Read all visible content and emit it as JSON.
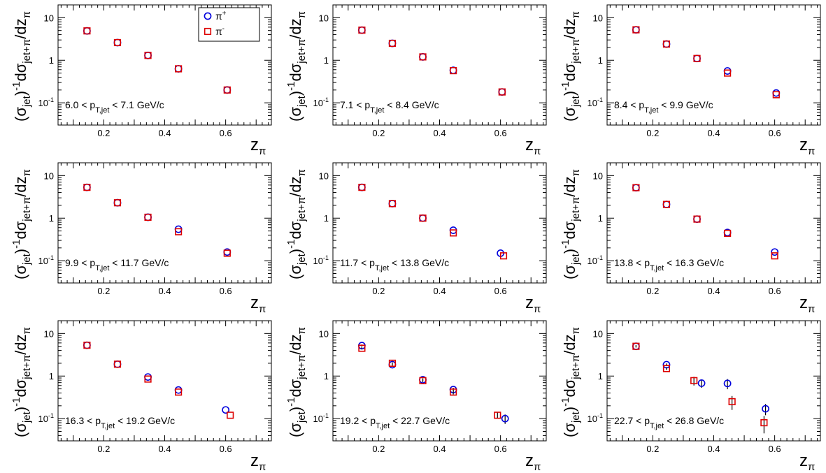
{
  "legend": {
    "entries": [
      {
        "series": "pi_plus",
        "label_base": "π",
        "label_sup": "+",
        "color": "#0000dd",
        "marker": "circle"
      },
      {
        "series": "pi_minus",
        "label_base": "π",
        "label_sup": "-",
        "color": "#dd0000",
        "marker": "square"
      }
    ]
  },
  "axes": {
    "ylabel_parts": [
      "(σ",
      "jet",
      ")",
      "-1",
      "dσ",
      "jet+π",
      "/dz",
      "π"
    ],
    "xlabel_parts": [
      "z",
      "π"
    ],
    "xticks": [
      0.2,
      0.4,
      0.6
    ],
    "xtick_labels": [
      "0.2",
      "0.4",
      "0.6"
    ],
    "yticks": [
      {
        "value": 10,
        "base": "10",
        "exp": ""
      },
      {
        "value": 1,
        "base": "1",
        "exp": ""
      },
      {
        "value": 0.1,
        "base": "10",
        "exp": "-1"
      }
    ]
  },
  "chart_data": [
    {
      "type": "scatter",
      "xlim": [
        0.05,
        0.75
      ],
      "ylim": [
        0.03,
        20
      ],
      "yscale": "log",
      "bin_parts": [
        "6.0 < p",
        "T,jet",
        " < 7.1 GeV/c"
      ],
      "legend": "top-right",
      "series": [
        {
          "name": "π+",
          "points": [
            {
              "x": 0.145,
              "y": 4.9
            },
            {
              "x": 0.245,
              "y": 2.6
            },
            {
              "x": 0.345,
              "y": 1.3
            },
            {
              "x": 0.445,
              "y": 0.63
            },
            {
              "x": 0.605,
              "y": 0.2
            }
          ]
        },
        {
          "name": "π-",
          "points": [
            {
              "x": 0.145,
              "y": 4.9
            },
            {
              "x": 0.245,
              "y": 2.6
            },
            {
              "x": 0.345,
              "y": 1.3
            },
            {
              "x": 0.445,
              "y": 0.63
            },
            {
              "x": 0.605,
              "y": 0.2
            }
          ]
        }
      ]
    },
    {
      "type": "scatter",
      "xlim": [
        0.05,
        0.75
      ],
      "ylim": [
        0.03,
        20
      ],
      "yscale": "log",
      "bin_parts": [
        "7.1 < p",
        "T,jet",
        " < 8.4 GeV/c"
      ],
      "series": [
        {
          "name": "π+",
          "points": [
            {
              "x": 0.145,
              "y": 5.1
            },
            {
              "x": 0.245,
              "y": 2.5
            },
            {
              "x": 0.345,
              "y": 1.2
            },
            {
              "x": 0.445,
              "y": 0.58
            },
            {
              "x": 0.605,
              "y": 0.18
            }
          ]
        },
        {
          "name": "π-",
          "points": [
            {
              "x": 0.145,
              "y": 5.1
            },
            {
              "x": 0.245,
              "y": 2.5
            },
            {
              "x": 0.345,
              "y": 1.2
            },
            {
              "x": 0.445,
              "y": 0.57
            },
            {
              "x": 0.605,
              "y": 0.18
            }
          ]
        }
      ]
    },
    {
      "type": "scatter",
      "xlim": [
        0.05,
        0.75
      ],
      "ylim": [
        0.03,
        20
      ],
      "yscale": "log",
      "bin_parts": [
        "8.4 < p",
        "T,jet",
        " < 9.9 GeV/c"
      ],
      "series": [
        {
          "name": "π+",
          "points": [
            {
              "x": 0.145,
              "y": 5.2
            },
            {
              "x": 0.245,
              "y": 2.4
            },
            {
              "x": 0.345,
              "y": 1.1
            },
            {
              "x": 0.445,
              "y": 0.56
            },
            {
              "x": 0.605,
              "y": 0.17
            }
          ]
        },
        {
          "name": "π-",
          "points": [
            {
              "x": 0.145,
              "y": 5.2
            },
            {
              "x": 0.245,
              "y": 2.4
            },
            {
              "x": 0.345,
              "y": 1.1
            },
            {
              "x": 0.445,
              "y": 0.5
            },
            {
              "x": 0.605,
              "y": 0.155
            }
          ]
        }
      ]
    },
    {
      "type": "scatter",
      "xlim": [
        0.05,
        0.75
      ],
      "ylim": [
        0.03,
        20
      ],
      "yscale": "log",
      "bin_parts": [
        "9.9 < p",
        "T,jet",
        " < 11.7 GeV/c"
      ],
      "series": [
        {
          "name": "π+",
          "points": [
            {
              "x": 0.145,
              "y": 5.3
            },
            {
              "x": 0.245,
              "y": 2.3
            },
            {
              "x": 0.345,
              "y": 1.05
            },
            {
              "x": 0.445,
              "y": 0.55
            },
            {
              "x": 0.605,
              "y": 0.16
            }
          ]
        },
        {
          "name": "π-",
          "points": [
            {
              "x": 0.145,
              "y": 5.3
            },
            {
              "x": 0.245,
              "y": 2.3
            },
            {
              "x": 0.345,
              "y": 1.05
            },
            {
              "x": 0.445,
              "y": 0.48
            },
            {
              "x": 0.605,
              "y": 0.15
            }
          ]
        }
      ]
    },
    {
      "type": "scatter",
      "xlim": [
        0.05,
        0.75
      ],
      "ylim": [
        0.03,
        20
      ],
      "yscale": "log",
      "bin_parts": [
        "11.7 < p",
        "T,jet",
        " < 13.8 GeV/c"
      ],
      "series": [
        {
          "name": "π+",
          "points": [
            {
              "x": 0.145,
              "y": 5.3
            },
            {
              "x": 0.245,
              "y": 2.2
            },
            {
              "x": 0.345,
              "y": 1.0
            },
            {
              "x": 0.445,
              "y": 0.52
            },
            {
              "x": 0.6,
              "y": 0.15
            }
          ]
        },
        {
          "name": "π-",
          "points": [
            {
              "x": 0.145,
              "y": 5.3
            },
            {
              "x": 0.245,
              "y": 2.2
            },
            {
              "x": 0.345,
              "y": 1.0
            },
            {
              "x": 0.445,
              "y": 0.45
            },
            {
              "x": 0.61,
              "y": 0.13
            }
          ]
        }
      ]
    },
    {
      "type": "scatter",
      "xlim": [
        0.05,
        0.75
      ],
      "ylim": [
        0.03,
        20
      ],
      "yscale": "log",
      "bin_parts": [
        "13.8 < p",
        "T,jet",
        " < 16.3 GeV/c"
      ],
      "series": [
        {
          "name": "π+",
          "points": [
            {
              "x": 0.145,
              "y": 5.2
            },
            {
              "x": 0.245,
              "y": 2.1
            },
            {
              "x": 0.345,
              "y": 0.95
            },
            {
              "x": 0.445,
              "y": 0.46
            },
            {
              "x": 0.6,
              "y": 0.16
            }
          ]
        },
        {
          "name": "π-",
          "points": [
            {
              "x": 0.145,
              "y": 5.2
            },
            {
              "x": 0.245,
              "y": 2.1
            },
            {
              "x": 0.345,
              "y": 0.95
            },
            {
              "x": 0.445,
              "y": 0.44
            },
            {
              "x": 0.6,
              "y": 0.13
            }
          ]
        }
      ]
    },
    {
      "type": "scatter",
      "xlim": [
        0.05,
        0.75
      ],
      "ylim": [
        0.03,
        20
      ],
      "yscale": "log",
      "bin_parts": [
        "16.3 < p",
        "T,jet",
        " < 19.2 GeV/c"
      ],
      "series": [
        {
          "name": "π+",
          "points": [
            {
              "x": 0.145,
              "y": 5.3
            },
            {
              "x": 0.245,
              "y": 1.9
            },
            {
              "x": 0.345,
              "y": 0.95
            },
            {
              "x": 0.445,
              "y": 0.47
            },
            {
              "x": 0.6,
              "y": 0.16
            }
          ]
        },
        {
          "name": "π-",
          "points": [
            {
              "x": 0.145,
              "y": 5.3
            },
            {
              "x": 0.245,
              "y": 1.9
            },
            {
              "x": 0.345,
              "y": 0.85
            },
            {
              "x": 0.445,
              "y": 0.42
            },
            {
              "x": 0.615,
              "y": 0.12
            }
          ]
        }
      ]
    },
    {
      "type": "scatter",
      "xlim": [
        0.05,
        0.75
      ],
      "ylim": [
        0.03,
        20
      ],
      "yscale": "log",
      "bin_parts": [
        "19.2 < p",
        "T,jet",
        " < 22.7 GeV/c"
      ],
      "series": [
        {
          "name": "π+",
          "points": [
            {
              "x": 0.145,
              "y": 5.2,
              "err": 0.3
            },
            {
              "x": 0.245,
              "y": 1.85,
              "err": 0.1
            },
            {
              "x": 0.345,
              "y": 0.82,
              "err": 0.06
            },
            {
              "x": 0.445,
              "y": 0.48,
              "err": 0.05
            },
            {
              "x": 0.615,
              "y": 0.1,
              "err": 0.025
            }
          ]
        },
        {
          "name": "π-",
          "points": [
            {
              "x": 0.145,
              "y": 4.5,
              "err": 0.3
            },
            {
              "x": 0.245,
              "y": 2.0,
              "err": 0.1
            },
            {
              "x": 0.345,
              "y": 0.78,
              "err": 0.06
            },
            {
              "x": 0.445,
              "y": 0.42,
              "err": 0.05
            },
            {
              "x": 0.59,
              "y": 0.12,
              "err": 0.02
            }
          ]
        }
      ]
    },
    {
      "type": "scatter",
      "xlim": [
        0.05,
        0.75
      ],
      "ylim": [
        0.03,
        20
      ],
      "yscale": "log",
      "bin_parts": [
        "22.7 < p",
        "T,jet",
        " < 26.8 GeV/c"
      ],
      "series": [
        {
          "name": "π+",
          "points": [
            {
              "x": 0.145,
              "y": 5.0,
              "err": 0.3
            },
            {
              "x": 0.245,
              "y": 1.85,
              "err": 0.12
            },
            {
              "x": 0.36,
              "y": 0.68,
              "err": 0.15
            },
            {
              "x": 0.445,
              "y": 0.67,
              "err": 0.18
            },
            {
              "x": 0.57,
              "y": 0.17,
              "err": 0.05
            }
          ]
        },
        {
          "name": "π-",
          "points": [
            {
              "x": 0.145,
              "y": 5.0,
              "err": 0.3
            },
            {
              "x": 0.245,
              "y": 1.5,
              "err": 0.12
            },
            {
              "x": 0.335,
              "y": 0.78,
              "err": 0.18
            },
            {
              "x": 0.46,
              "y": 0.25,
              "err": 0.09
            },
            {
              "x": 0.565,
              "y": 0.08,
              "err": 0.035
            }
          ]
        }
      ]
    }
  ]
}
